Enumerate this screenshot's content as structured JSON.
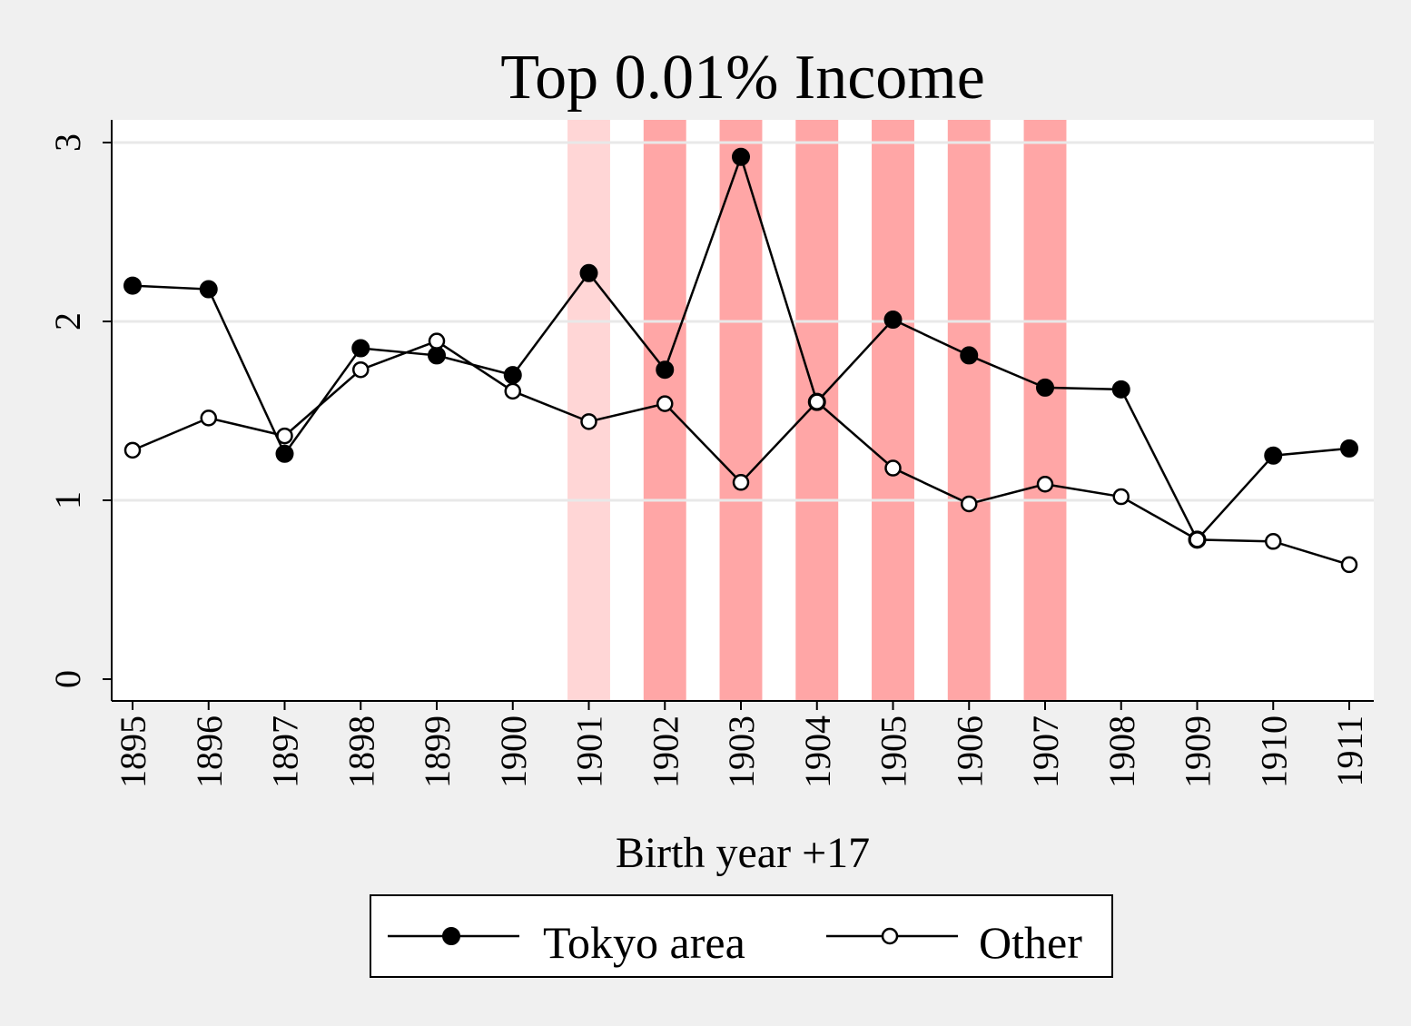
{
  "chart_data": {
    "type": "line",
    "title": "Top 0.01% Income",
    "xlabel": "Birth year +17",
    "ylabel": "",
    "x": [
      1895,
      1896,
      1897,
      1898,
      1899,
      1900,
      1901,
      1902,
      1903,
      1904,
      1905,
      1906,
      1907,
      1908,
      1909,
      1910,
      1911
    ],
    "xlim": [
      1895,
      1911
    ],
    "ylim": [
      0,
      3
    ],
    "yticks": [
      0,
      1,
      2,
      3
    ],
    "grid": true,
    "legend_position": "bottom",
    "series": [
      {
        "name": "Tokyo area",
        "marker": "filled-circle",
        "values": [
          2.2,
          2.18,
          1.26,
          1.85,
          1.81,
          1.7,
          2.27,
          1.73,
          2.92,
          1.55,
          2.01,
          1.81,
          1.63,
          1.62,
          0.78,
          1.25,
          1.29
        ]
      },
      {
        "name": "Other",
        "marker": "hollow-circle",
        "values": [
          1.28,
          1.46,
          1.36,
          1.73,
          1.89,
          1.61,
          1.44,
          1.54,
          1.1,
          1.55,
          1.18,
          0.98,
          1.09,
          1.02,
          0.78,
          0.77,
          0.64
        ]
      }
    ],
    "shaded_years": [
      {
        "year": 1901,
        "color": "#ffd6d6"
      },
      {
        "year": 1902,
        "color": "#ffa6a6"
      },
      {
        "year": 1903,
        "color": "#ffa6a6"
      },
      {
        "year": 1904,
        "color": "#ffa6a6"
      },
      {
        "year": 1905,
        "color": "#ffa6a6"
      },
      {
        "year": 1906,
        "color": "#ffa6a6"
      },
      {
        "year": 1907,
        "color": "#ffa6a6"
      }
    ]
  },
  "colors": {
    "background": "#f0f0f0",
    "plot_background": "#ffffff",
    "grid": "#e8e8e8",
    "line": "#000000"
  }
}
